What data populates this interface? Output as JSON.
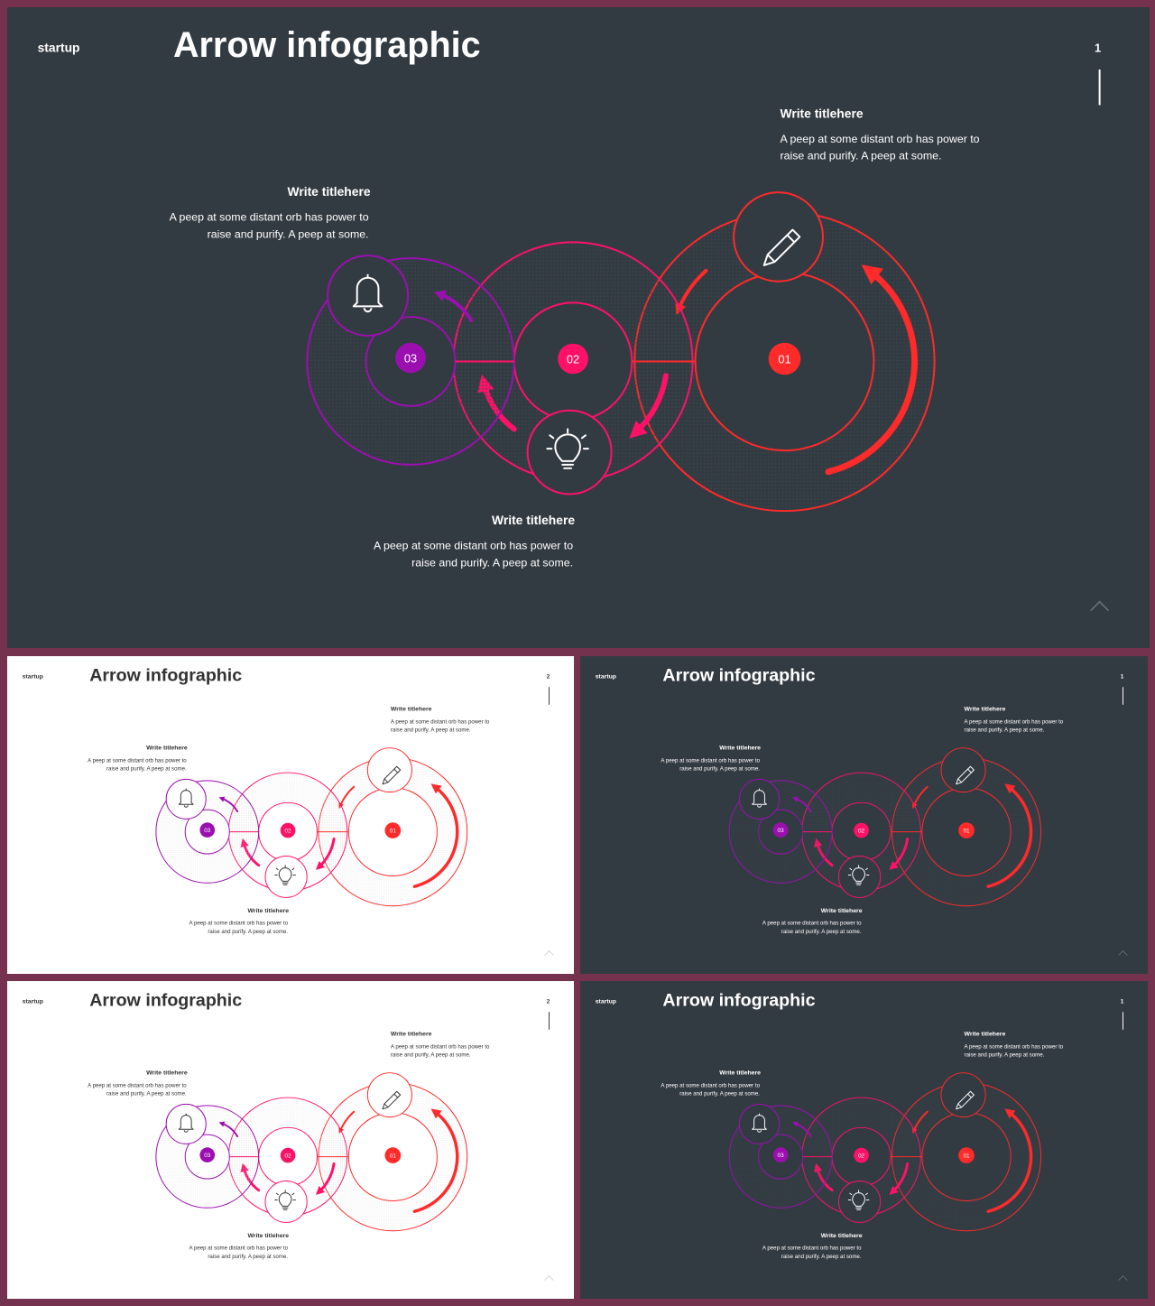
{
  "brand": "startup",
  "title": "Arrow infographic",
  "blocks": {
    "top_right": {
      "heading": "Write titlehere",
      "line1": "A peep at some distant orb has power to",
      "line2": "raise and purify. A peep at some."
    },
    "left": {
      "heading": "Write titlehere",
      "line1": "A peep at some distant orb has power to",
      "line2": "raise and purify. A peep at some."
    },
    "bottom": {
      "heading": "Write titlehere",
      "line1": "A peep at some distant orb has power to",
      "line2": "raise and purify. A peep at some."
    }
  },
  "steps": [
    {
      "number": "01",
      "color": "#ff2a2a",
      "icon": "pencil-icon"
    },
    {
      "number": "02",
      "color": "#ff1168",
      "icon": "lightbulb-icon"
    },
    {
      "number": "03",
      "color": "#9b0fb0",
      "icon": "bell-icon"
    }
  ],
  "slides": [
    {
      "id": "main",
      "theme": "dark",
      "page": "1"
    },
    {
      "id": "thumb-1",
      "theme": "light",
      "page": "2"
    },
    {
      "id": "thumb-2",
      "theme": "dark",
      "page": "1"
    },
    {
      "id": "thumb-3",
      "theme": "light",
      "page": "2"
    },
    {
      "id": "thumb-4",
      "theme": "dark",
      "page": "1"
    }
  ],
  "themes": {
    "dark": {
      "bg": "#333b42",
      "text": "#ffffff",
      "muted": "#6b737a"
    },
    "light": {
      "bg": "#ffffff",
      "text": "#333333",
      "muted": "#cccccc"
    }
  }
}
